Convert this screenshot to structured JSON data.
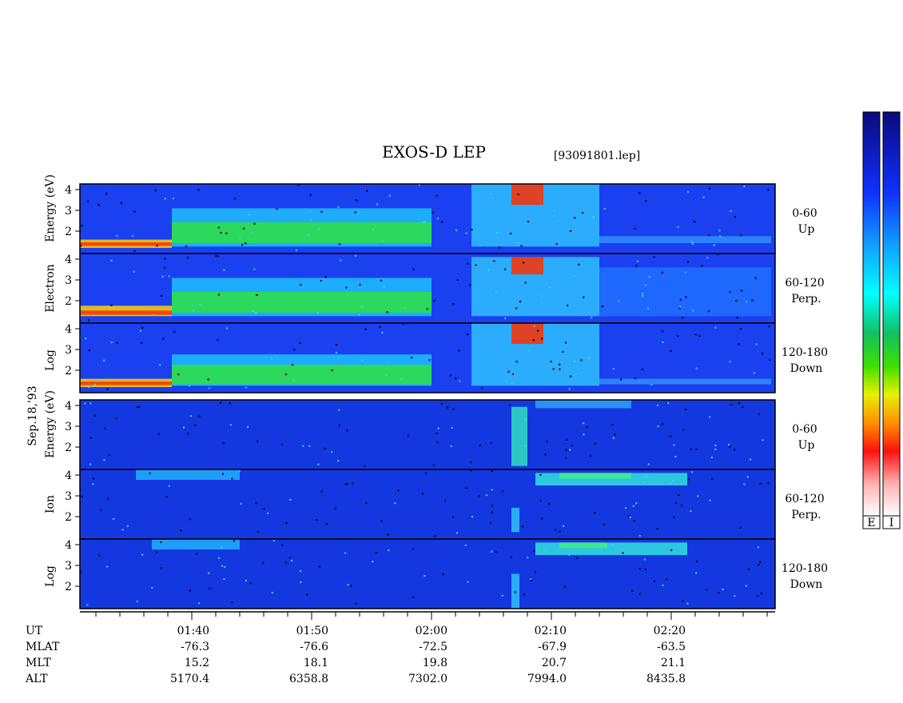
{
  "figure": {
    "title": "EXOS-D LEP",
    "file": "[93091801.lep]",
    "date": "Sep.18,'93",
    "groups": [
      {
        "label": [
          "Log",
          "Electron",
          "Energy (eV)"
        ],
        "panels": [
          {
            "angle": "0-60",
            "dir": "Up"
          },
          {
            "angle": "60-120",
            "dir": "Perp."
          },
          {
            "angle": "120-180",
            "dir": "Down"
          }
        ],
        "yticks": [
          "2",
          "3",
          "4"
        ]
      },
      {
        "label": [
          "Log",
          "Ion",
          "Energy (eV)"
        ],
        "panels": [
          {
            "angle": "0-60",
            "dir": "Up"
          },
          {
            "angle": "60-120",
            "dir": "Perp."
          },
          {
            "angle": "120-180",
            "dir": "Down"
          }
        ],
        "yticks": [
          "2",
          "3",
          "4"
        ]
      }
    ],
    "ephemeris": [
      {
        "label": "UT",
        "values": [
          "01:40",
          "01:50",
          "02:00",
          "02:10",
          "02:20"
        ]
      },
      {
        "label": "MLAT",
        "values": [
          "-76.3",
          "-76.6",
          "-72.5",
          "-67.9",
          "-63.5"
        ]
      },
      {
        "label": "MLT",
        "values": [
          "15.2",
          "18.1",
          "19.8",
          "20.7",
          "21.1"
        ]
      },
      {
        "label": "ALT",
        "values": [
          "5170.4",
          "6358.8",
          "7302.0",
          "7994.0",
          "8435.8"
        ]
      }
    ],
    "colorbars": [
      "E",
      "I"
    ]
  }
}
